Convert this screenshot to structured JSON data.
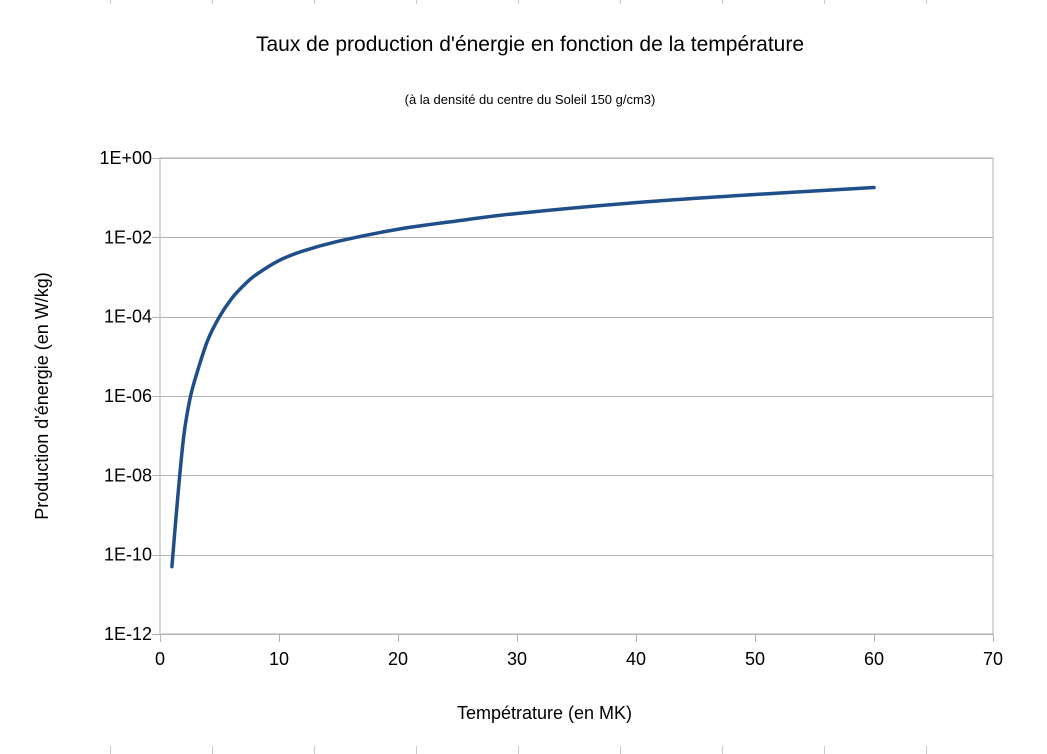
{
  "chart_data": {
    "type": "line",
    "title": "Taux de production d'énergie en fonction de la température",
    "subtitle": "(à la densité du centre du Soleil 150 g/cm3)",
    "xlabel": "Tempétrature (en MK)",
    "ylabel": "Production d'énergie (en W/kg)",
    "xlim": [
      0,
      70
    ],
    "x_ticks": [
      0,
      10,
      20,
      30,
      40,
      50,
      60,
      70
    ],
    "x_tick_labels": [
      "0",
      "10",
      "20",
      "30",
      "40",
      "50",
      "60",
      "70"
    ],
    "y_scale": "log",
    "ylim_exponent": [
      -12,
      0
    ],
    "y_ticks_exponent": [
      0,
      -2,
      -4,
      -6,
      -8,
      -10,
      -12
    ],
    "y_tick_labels": [
      "1E+00",
      "1E-02",
      "1E-04",
      "1E-06",
      "1E-08",
      "1E-10",
      "1E-12"
    ],
    "grid": "horizontal",
    "legend": "none",
    "series": [
      {
        "name": "Production d'énergie",
        "color": "#1f4e89",
        "x": [
          1,
          1.5,
          2,
          2.5,
          3,
          4,
          5,
          6,
          7,
          8,
          10,
          12,
          15,
          20,
          25,
          30,
          40,
          50,
          60
        ],
        "y": [
          5e-11,
          3e-09,
          1e-07,
          8e-07,
          3e-06,
          2.5e-05,
          0.0001,
          0.00028,
          0.0006,
          0.0011,
          0.0026,
          0.0045,
          0.008,
          0.016,
          0.026,
          0.04,
          0.075,
          0.12,
          0.18
        ]
      }
    ]
  }
}
